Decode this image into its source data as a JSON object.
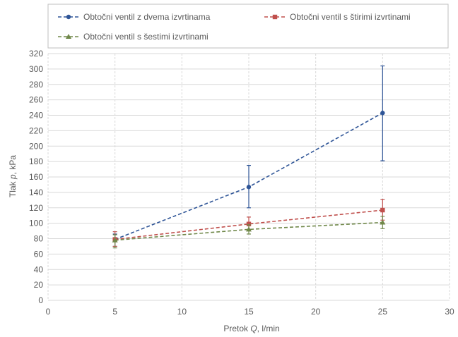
{
  "chart_data": {
    "type": "line",
    "title": "",
    "xlabel_parts": [
      "Pretok ",
      "Q",
      ", l/min"
    ],
    "ylabel_parts": [
      "Tlak ",
      "p",
      ", kPa"
    ],
    "xlim": [
      0,
      30
    ],
    "ylim": [
      0,
      320
    ],
    "x_ticks": [
      0,
      5,
      10,
      15,
      20,
      25,
      30
    ],
    "y_ticks": [
      0,
      20,
      40,
      60,
      80,
      100,
      120,
      140,
      160,
      180,
      200,
      220,
      240,
      260,
      280,
      300,
      320
    ],
    "grid": true,
    "legend_position": "top",
    "series": [
      {
        "name": "Obtočni ventil z dvema izvrtinama",
        "color": "#2f5597",
        "marker": "circle",
        "x": [
          5,
          15,
          25
        ],
        "y": [
          79,
          147,
          243
        ],
        "error_low": [
          70,
          120,
          181
        ],
        "error_high": [
          86,
          175,
          304
        ]
      },
      {
        "name": "Obtočni ventil s štirimi izvrtinami",
        "color": "#c0504d",
        "marker": "square",
        "x": [
          5,
          15,
          25
        ],
        "y": [
          79,
          99,
          117
        ],
        "error_low": [
          70,
          91,
          104
        ],
        "error_high": [
          89,
          108,
          131
        ]
      },
      {
        "name": "Obtočni ventil s šestimi izvrtinami",
        "color": "#70884a",
        "marker": "triangle",
        "x": [
          5,
          15,
          25
        ],
        "y": [
          78,
          92,
          101
        ],
        "error_low": [
          68,
          86,
          93
        ],
        "error_high": [
          85,
          98,
          109
        ]
      }
    ]
  }
}
